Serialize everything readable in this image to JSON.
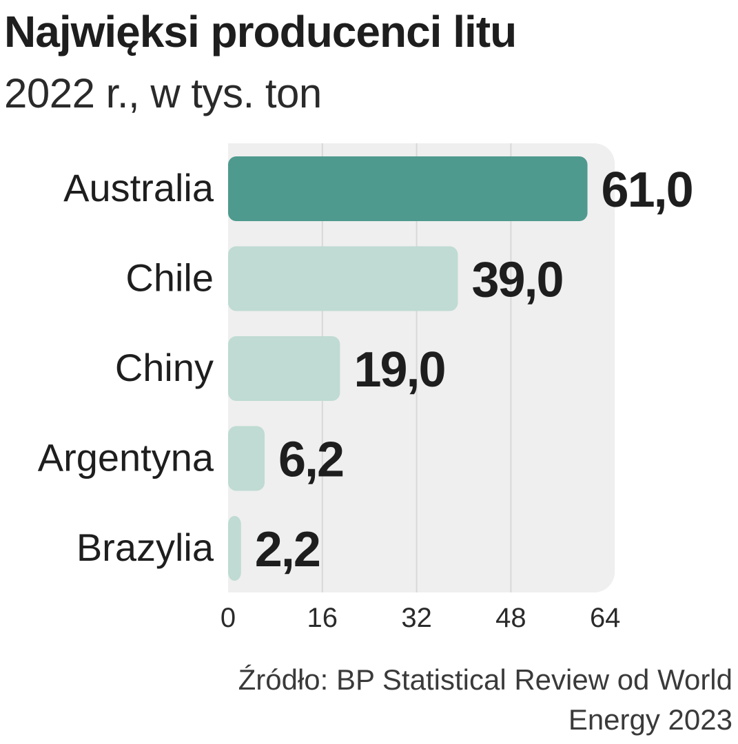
{
  "header": {
    "title": "Najwięksi producenci litu",
    "subtitle": "2022 r., w tys. ton"
  },
  "footer": {
    "source_line1": "Źródło: BP Statistical Review od World",
    "source_line2": "Energy 2023"
  },
  "colors": {
    "highlight_bar": "#4f9a8e",
    "regular_bar": "#bfdbd3",
    "plot_background": "#efefef",
    "gridline": "#d8d8d8",
    "text": "#1e1e1e"
  },
  "chart_data": {
    "type": "bar",
    "orientation": "horizontal",
    "title": "Najwięksi producenci litu",
    "subtitle": "2022 r., w tys. ton",
    "categories": [
      "Australia",
      "Chile",
      "Chiny",
      "Argentyna",
      "Brazylia"
    ],
    "values": [
      61.0,
      39.0,
      19.0,
      6.2,
      2.2
    ],
    "value_labels": [
      "61,0",
      "39,0",
      "19,0",
      "6,2",
      "2,2"
    ],
    "highlighted": [
      true,
      false,
      false,
      false,
      false
    ],
    "xlim": [
      0,
      64
    ],
    "xticks": [
      0,
      16,
      32,
      48,
      64
    ],
    "xtick_labels": [
      "0",
      "16",
      "32",
      "48",
      "64"
    ],
    "grid": true,
    "xlabel": "",
    "ylabel": ""
  }
}
